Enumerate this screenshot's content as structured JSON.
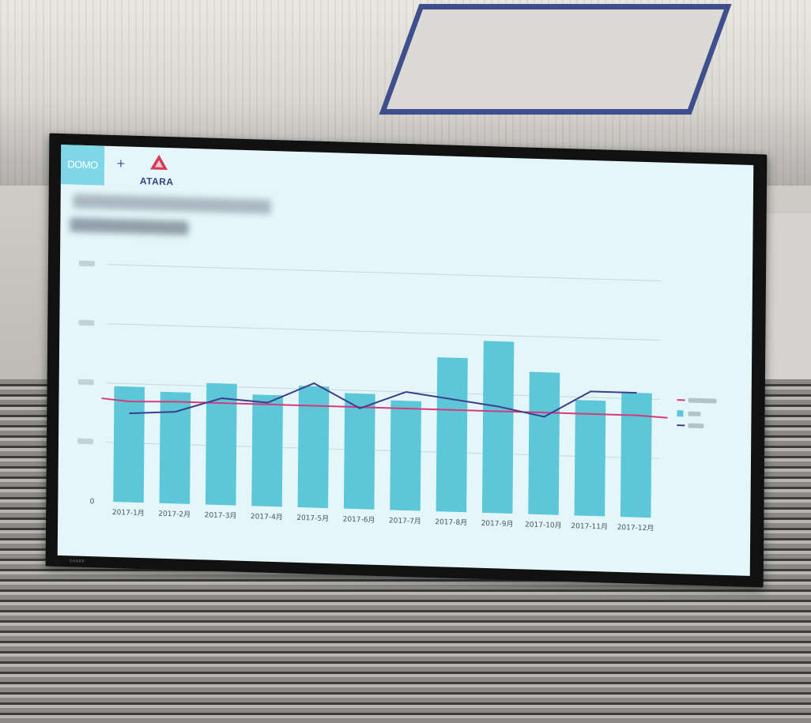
{
  "scene": {
    "description_free": true
  },
  "screen": {
    "logo_left": "DOMO",
    "logo_plus": "+",
    "logo_right": "ATARA",
    "colors": {
      "domo_tile": "#7ed6e6",
      "atara_mark": "#d63a5a",
      "atara_text": "#3e3f85",
      "bar": "#5bc7d8",
      "line_target": "#d63a7a",
      "line_prev": "#3f3d8c"
    }
  },
  "chart_data": {
    "type": "bar",
    "categories": [
      "2017-1月",
      "2017-2月",
      "2017-3月",
      "2017-4月",
      "2017-5月",
      "2017-6月",
      "2017-7月",
      "2017-8月",
      "2017-9月",
      "2017-10月",
      "2017-11月",
      "2017-12月"
    ],
    "y_tick_labels": [
      "0"
    ],
    "ylim": [
      0,
      400
    ],
    "grid": true,
    "legend_position": "right",
    "series": [
      {
        "type": "bar",
        "values": [
          195,
          188,
          205,
          188,
          205,
          195,
          185,
          260,
          290,
          240,
          195,
          210
        ]
      },
      {
        "type": "line",
        "values": [
          170,
          172,
          172,
          172,
          172,
          172,
          172,
          172,
          172,
          172,
          172,
          172
        ]
      },
      {
        "type": "line",
        "values": [
          150,
          155,
          180,
          175,
          210,
          170,
          200,
          190,
          180,
          165,
          210,
          210
        ]
      }
    ],
    "legend_entries_legible": false
  }
}
